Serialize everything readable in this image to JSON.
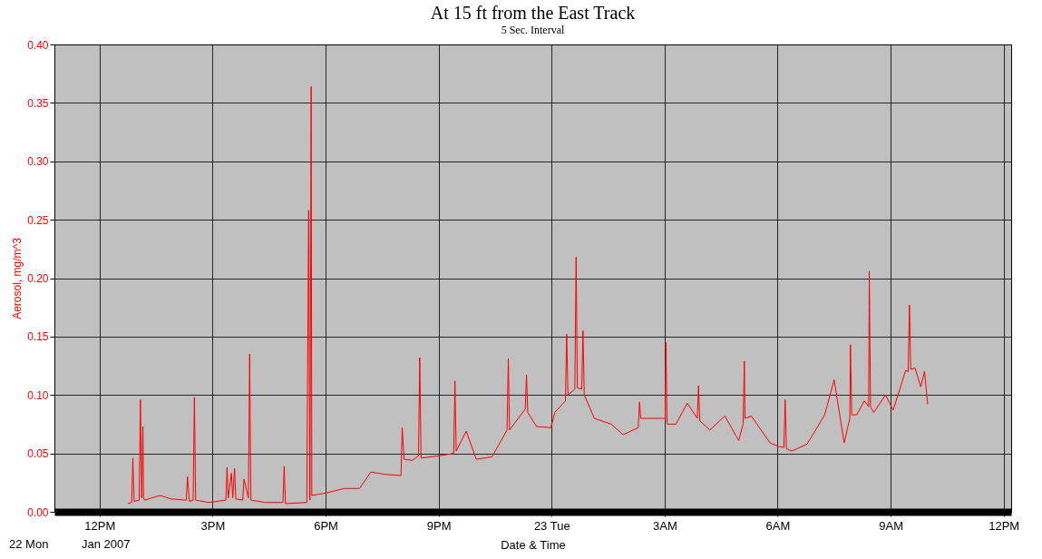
{
  "chart_data": {
    "type": "line",
    "title": "At 15 ft from the East Track",
    "subtitle": "5 Sec. Interval",
    "xlabel": "Date & Time",
    "ylabel": "Aerosol, mg/m^3",
    "annotations": [
      "22 Mon",
      "Jan 2007"
    ],
    "xlim": [
      "2007-01-22T10:48",
      "2007-01-23T12:12"
    ],
    "xticks": [
      {
        "value": "2007-01-22T12:00",
        "label": "12PM"
      },
      {
        "value": "2007-01-22T15:00",
        "label": "3PM"
      },
      {
        "value": "2007-01-22T18:00",
        "label": "6PM"
      },
      {
        "value": "2007-01-22T21:00",
        "label": "9PM"
      },
      {
        "value": "2007-01-23T00:00",
        "label": "23 Tue"
      },
      {
        "value": "2007-01-23T03:00",
        "label": "3AM"
      },
      {
        "value": "2007-01-23T06:00",
        "label": "6AM"
      },
      {
        "value": "2007-01-23T09:00",
        "label": "9AM"
      },
      {
        "value": "2007-01-23T12:00",
        "label": "12PM"
      }
    ],
    "ylim": [
      0,
      0.4
    ],
    "yticks": [
      {
        "value": 0,
        "label": "0.00"
      },
      {
        "value": 0.05,
        "label": "0.05"
      },
      {
        "value": 0.1,
        "label": "0.10"
      },
      {
        "value": 0.15,
        "label": "0.15"
      },
      {
        "value": 0.2,
        "label": "0.20"
      },
      {
        "value": 0.25,
        "label": "0.25"
      },
      {
        "value": 0.3,
        "label": "0.30"
      },
      {
        "value": 0.35,
        "label": "0.35"
      },
      {
        "value": 0.4,
        "label": "0.40"
      }
    ],
    "grid": true,
    "marker": "none",
    "line_style": "solid",
    "series": [
      {
        "color": "#ff0000",
        "x": [
          "2007-01-22T12:45",
          "2007-01-22T12:51",
          "2007-01-22T12:53",
          "2007-01-22T12:55",
          "2007-01-22T13:03",
          "2007-01-22T13:05",
          "2007-01-22T13:07",
          "2007-01-22T13:09",
          "2007-01-22T13:10",
          "2007-01-22T13:12",
          "2007-01-22T13:36",
          "2007-01-22T13:54",
          "2007-01-22T14:18",
          "2007-01-22T14:20",
          "2007-01-22T14:23",
          "2007-01-22T14:29",
          "2007-01-22T14:31",
          "2007-01-22T14:33",
          "2007-01-22T14:54",
          "2007-01-22T15:21",
          "2007-01-22T15:23",
          "2007-01-22T15:25",
          "2007-01-22T15:30",
          "2007-01-22T15:32",
          "2007-01-22T15:35",
          "2007-01-22T15:37",
          "2007-01-22T15:48",
          "2007-01-22T15:50",
          "2007-01-22T15:57",
          "2007-01-22T15:59",
          "2007-01-22T16:01",
          "2007-01-22T16:24",
          "2007-01-22T16:52",
          "2007-01-22T16:54",
          "2007-01-22T16:56",
          "2007-01-22T17:30",
          "2007-01-22T17:33",
          "2007-01-22T17:35",
          "2007-01-22T17:37",
          "2007-01-22T17:38",
          "2007-01-22T18:00",
          "2007-01-22T18:30",
          "2007-01-22T18:54",
          "2007-01-22T19:12",
          "2007-01-22T19:36",
          "2007-01-22T20:00",
          "2007-01-22T20:02",
          "2007-01-22T20:05",
          "2007-01-22T20:18",
          "2007-01-22T20:28",
          "2007-01-22T20:30",
          "2007-01-22T20:32",
          "2007-01-22T21:02",
          "2007-01-22T21:24",
          "2007-01-22T21:26",
          "2007-01-22T21:28",
          "2007-01-22T21:44",
          "2007-01-22T22:00",
          "2007-01-22T22:25",
          "2007-01-22T22:49",
          "2007-01-22T22:51",
          "2007-01-22T22:53",
          "2007-01-22T23:18",
          "2007-01-22T23:20",
          "2007-01-22T23:22",
          "2007-01-22T23:36",
          "2007-01-22T23:59",
          "2007-01-23T00:05",
          "2007-01-23T00:22",
          "2007-01-23T00:24",
          "2007-01-23T00:26",
          "2007-01-23T00:37",
          "2007-01-23T00:39",
          "2007-01-23T00:41",
          "2007-01-23T00:48",
          "2007-01-23T00:50",
          "2007-01-23T00:52",
          "2007-01-23T01:08",
          "2007-01-23T01:35",
          "2007-01-23T01:54",
          "2007-01-23T02:18",
          "2007-01-23T02:20",
          "2007-01-23T02:22",
          "2007-01-23T02:42",
          "2007-01-23T03:01",
          "2007-01-23T03:02",
          "2007-01-23T03:04",
          "2007-01-23T03:18",
          "2007-01-23T03:36",
          "2007-01-23T03:52",
          "2007-01-23T03:54",
          "2007-01-23T03:56",
          "2007-01-23T04:12",
          "2007-01-23T04:36",
          "2007-01-23T04:58",
          "2007-01-23T05:05",
          "2007-01-23T05:07",
          "2007-01-23T05:08",
          "2007-01-23T05:18",
          "2007-01-23T05:48",
          "2007-01-23T06:01",
          "2007-01-23T06:10",
          "2007-01-23T06:12",
          "2007-01-23T06:14",
          "2007-01-23T06:23",
          "2007-01-23T06:47",
          "2007-01-23T07:15",
          "2007-01-23T07:30",
          "2007-01-23T07:46",
          "2007-01-23T07:55",
          "2007-01-23T07:56",
          "2007-01-23T07:58",
          "2007-01-23T08:06",
          "2007-01-23T08:18",
          "2007-01-23T08:25",
          "2007-01-23T08:26",
          "2007-01-23T08:28",
          "2007-01-23T08:33",
          "2007-01-23T08:52",
          "2007-01-23T09:04",
          "2007-01-23T09:24",
          "2007-01-23T09:28",
          "2007-01-23T09:30",
          "2007-01-23T09:32",
          "2007-01-23T09:39",
          "2007-01-23T09:48",
          "2007-01-23T09:54",
          "2007-01-23T09:59"
        ],
        "values": [
          0.007,
          0.008,
          0.046,
          0.009,
          0.01,
          0.096,
          0.012,
          0.073,
          0.012,
          0.01,
          0.014,
          0.011,
          0.01,
          0.03,
          0.009,
          0.01,
          0.098,
          0.01,
          0.008,
          0.01,
          0.038,
          0.012,
          0.033,
          0.012,
          0.037,
          0.011,
          0.01,
          0.028,
          0.012,
          0.135,
          0.01,
          0.008,
          0.008,
          0.039,
          0.007,
          0.008,
          0.258,
          0.01,
          0.364,
          0.014,
          0.016,
          0.02,
          0.02,
          0.034,
          0.032,
          0.031,
          0.072,
          0.045,
          0.044,
          0.048,
          0.132,
          0.046,
          0.048,
          0.05,
          0.112,
          0.052,
          0.069,
          0.045,
          0.047,
          0.07,
          0.131,
          0.07,
          0.088,
          0.117,
          0.085,
          0.073,
          0.072,
          0.085,
          0.095,
          0.152,
          0.1,
          0.105,
          0.218,
          0.106,
          0.105,
          0.155,
          0.1,
          0.08,
          0.075,
          0.066,
          0.072,
          0.094,
          0.08,
          0.08,
          0.08,
          0.145,
          0.075,
          0.075,
          0.093,
          0.08,
          0.108,
          0.078,
          0.07,
          0.082,
          0.061,
          0.075,
          0.129,
          0.08,
          0.082,
          0.059,
          0.056,
          0.055,
          0.096,
          0.054,
          0.052,
          0.058,
          0.083,
          0.113,
          0.059,
          0.08,
          0.143,
          0.083,
          0.083,
          0.095,
          0.09,
          0.206,
          0.09,
          0.085,
          0.1,
          0.087,
          0.121,
          0.12,
          0.177,
          0.122,
          0.123,
          0.107,
          0.12,
          0.092
        ]
      }
    ]
  }
}
